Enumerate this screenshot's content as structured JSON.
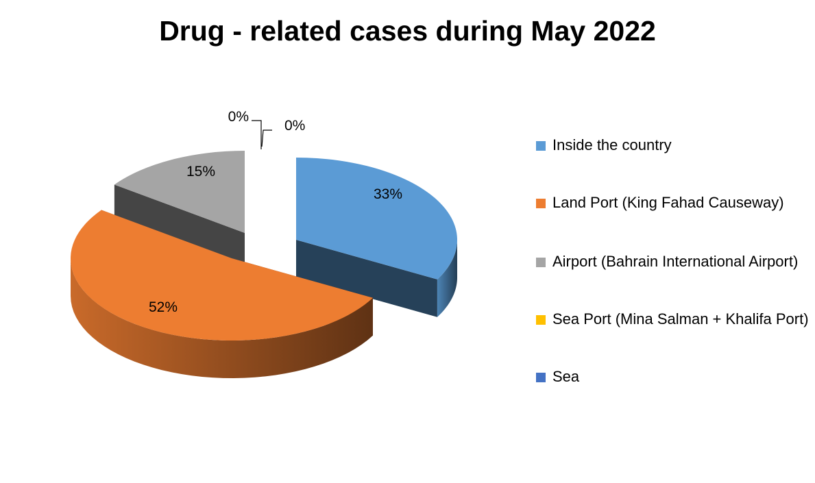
{
  "chart_data": {
    "type": "pie",
    "title": "Drug - related cases during May 2022",
    "categories": [
      "Inside the country",
      "Land Port (King Fahad Causeway)",
      "Airport (Bahrain International Airport)",
      "Sea Port (Mina Salman + Khalifa Port)",
      "Sea"
    ],
    "values": [
      33,
      52,
      15,
      0,
      0
    ],
    "labels": [
      "33%",
      "52%",
      "15%",
      "0%",
      "0%"
    ],
    "colors": [
      "#5B9BD5",
      "#ED7D31",
      "#A5A5A5",
      "#FFC000",
      "#4472C4"
    ],
    "legend_position": "right",
    "style": "3D exploded pie"
  }
}
